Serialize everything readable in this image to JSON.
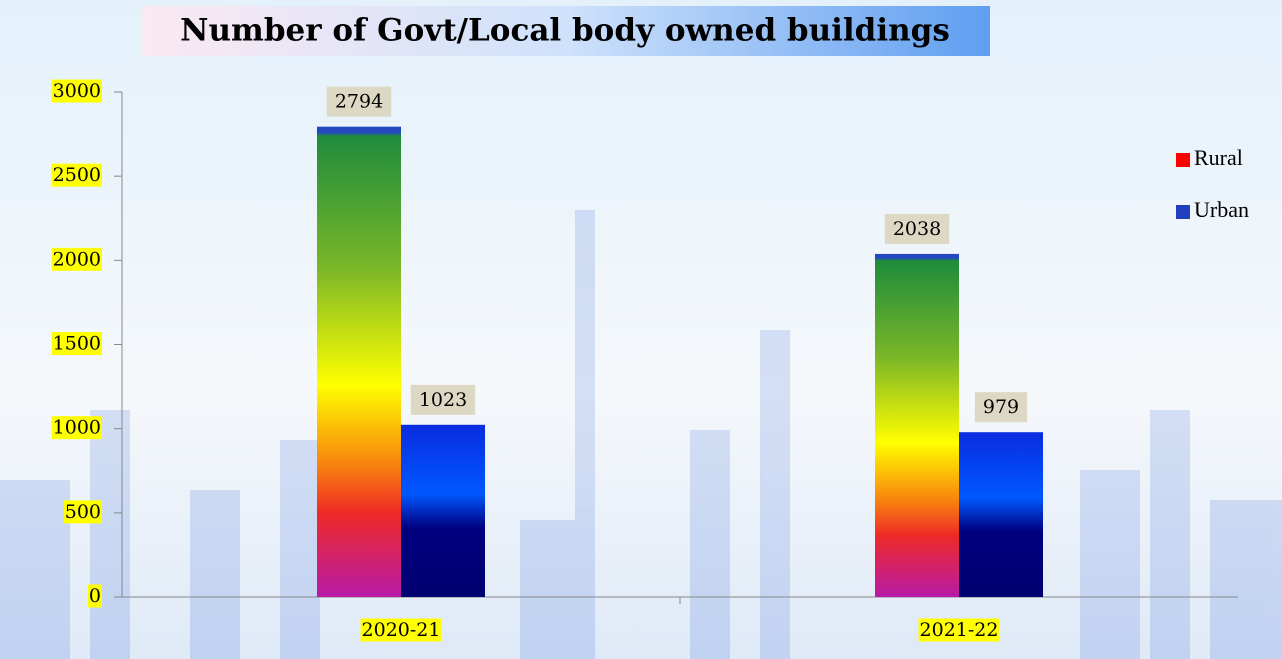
{
  "chart_data": {
    "type": "bar",
    "title": "Number of Govt/Local body owned buildings",
    "categories": [
      "2020-21",
      "2021-22"
    ],
    "series": [
      {
        "name": "Rural",
        "color": "#ff0000",
        "values": [
          2794,
          2038
        ]
      },
      {
        "name": "Urban",
        "color": "#1f3fbf",
        "values": [
          1023,
          979
        ]
      }
    ],
    "ylim": [
      0,
      3000
    ],
    "yticks": [
      0,
      500,
      1000,
      1500,
      2000,
      2500,
      3000
    ],
    "legend": "right",
    "grid": false
  }
}
